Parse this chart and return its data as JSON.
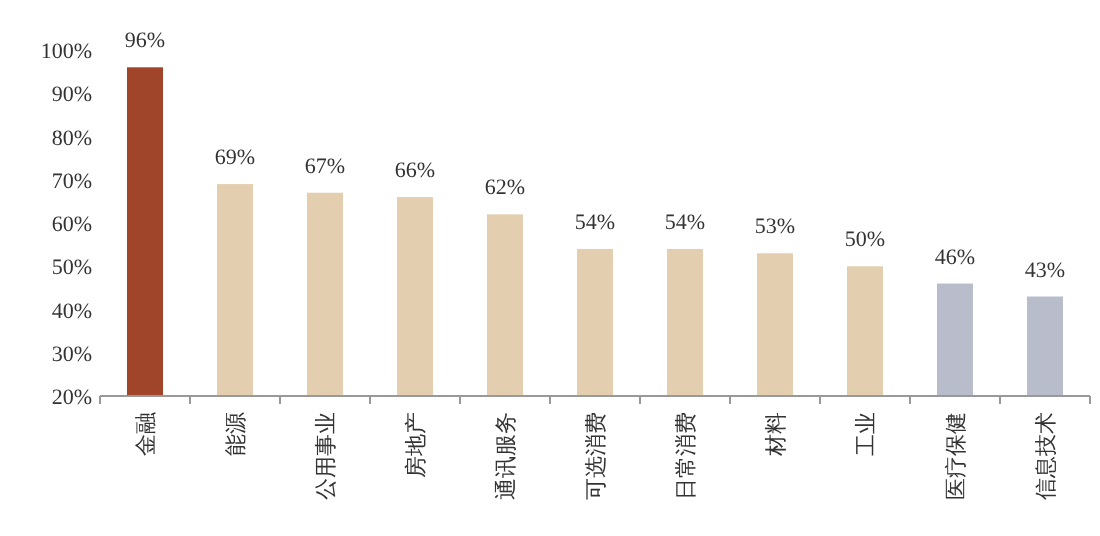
{
  "chart_data": {
    "type": "bar",
    "categories": [
      "金融",
      "能源",
      "公用事业",
      "房地产",
      "通讯服务",
      "可选消费",
      "日常消费",
      "材料",
      "工业",
      "医疗保健",
      "信息技术"
    ],
    "values": [
      96,
      69,
      67,
      66,
      62,
      54,
      54,
      53,
      50,
      46,
      43
    ],
    "colors": [
      "#a0442a",
      "#e3cfb0",
      "#e3cfb0",
      "#e3cfb0",
      "#e3cfb0",
      "#e3cfb0",
      "#e3cfb0",
      "#e3cfb0",
      "#e3cfb0",
      "#b8bccb",
      "#b8bccb"
    ],
    "value_labels": [
      "96%",
      "69%",
      "67%",
      "66%",
      "62%",
      "54%",
      "54%",
      "53%",
      "50%",
      "46%",
      "43%"
    ],
    "ylim": [
      20,
      100
    ],
    "yticks": [
      {
        "value": 20,
        "label": "20%"
      },
      {
        "value": 30,
        "label": "30%"
      },
      {
        "value": 40,
        "label": "40%"
      },
      {
        "value": 50,
        "label": "50%"
      },
      {
        "value": 60,
        "label": "60%"
      },
      {
        "value": 70,
        "label": "70%"
      },
      {
        "value": 80,
        "label": "80%"
      },
      {
        "value": 90,
        "label": "90%"
      },
      {
        "value": 100,
        "label": "100%"
      }
    ],
    "grid": false
  }
}
